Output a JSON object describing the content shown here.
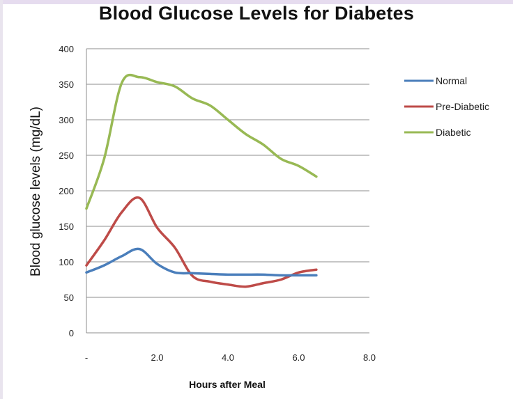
{
  "title": "Blood Glucose Levels for Diabetes",
  "chart_data": {
    "type": "line",
    "title": "Blood Glucose Levels for Diabetes",
    "xlabel": "Hours after Meal",
    "ylabel": "Blood glucose levels (mg/dL)",
    "xlim": [
      0,
      8
    ],
    "ylim": [
      0,
      400
    ],
    "x_ticks": [
      {
        "value": 0,
        "label": "-"
      },
      {
        "value": 2,
        "label": "2.0"
      },
      {
        "value": 4,
        "label": "4.0"
      },
      {
        "value": 6,
        "label": "6.0"
      },
      {
        "value": 8,
        "label": "8.0"
      }
    ],
    "y_ticks": [
      0,
      50,
      100,
      150,
      200,
      250,
      300,
      350,
      400
    ],
    "grid": "horizontal",
    "legend_position": "right",
    "series": [
      {
        "name": "Normal",
        "color": "#4a7ebb",
        "points": [
          [
            0,
            85
          ],
          [
            0.5,
            95
          ],
          [
            1,
            108
          ],
          [
            1.5,
            118
          ],
          [
            2,
            97
          ],
          [
            2.5,
            85
          ],
          [
            3,
            84
          ],
          [
            3.5,
            83
          ],
          [
            4,
            82
          ],
          [
            4.5,
            82
          ],
          [
            5,
            82
          ],
          [
            5.5,
            81
          ],
          [
            6,
            81
          ],
          [
            6.5,
            81
          ]
        ]
      },
      {
        "name": "Pre-Diabetic",
        "color": "#be4b48",
        "points": [
          [
            0,
            95
          ],
          [
            0.5,
            130
          ],
          [
            1,
            170
          ],
          [
            1.5,
            190
          ],
          [
            2,
            148
          ],
          [
            2.5,
            120
          ],
          [
            3,
            80
          ],
          [
            3.5,
            72
          ],
          [
            4,
            68
          ],
          [
            4.5,
            65
          ],
          [
            5,
            70
          ],
          [
            5.5,
            75
          ],
          [
            6,
            85
          ],
          [
            6.5,
            89
          ]
        ]
      },
      {
        "name": "Diabetic",
        "color": "#98b954",
        "points": [
          [
            0,
            175
          ],
          [
            0.5,
            245
          ],
          [
            1,
            352
          ],
          [
            1.5,
            360
          ],
          [
            2,
            353
          ],
          [
            2.5,
            347
          ],
          [
            3,
            330
          ],
          [
            3.5,
            320
          ],
          [
            4,
            300
          ],
          [
            4.5,
            280
          ],
          [
            5,
            265
          ],
          [
            5.5,
            245
          ],
          [
            6,
            235
          ],
          [
            6.5,
            220
          ]
        ]
      }
    ]
  }
}
